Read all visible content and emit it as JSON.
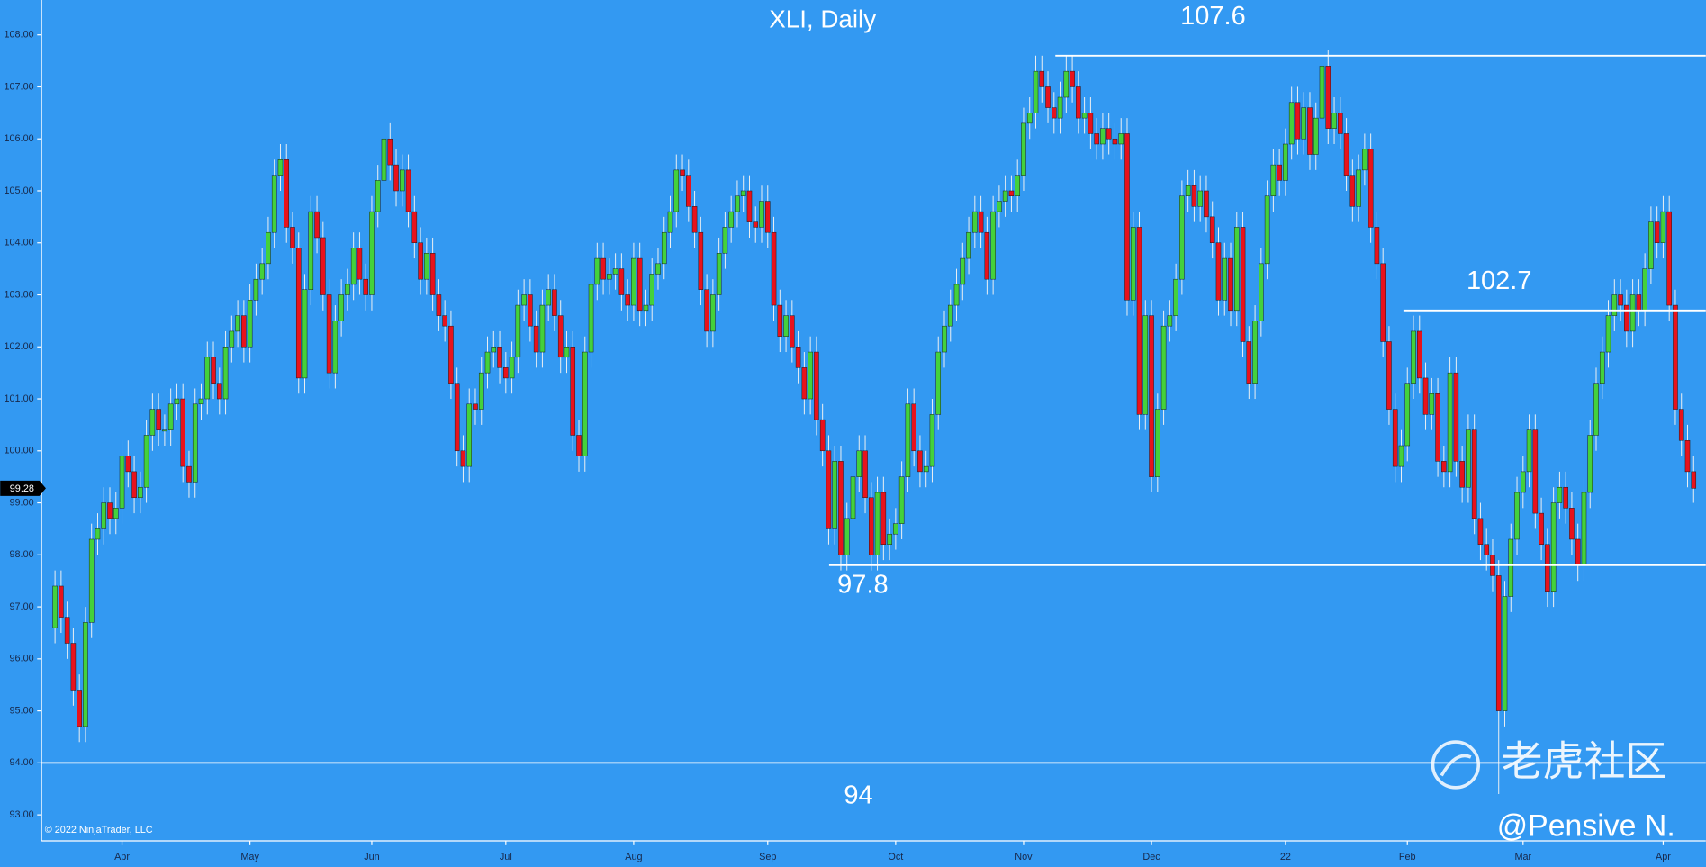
{
  "chart_data": {
    "type": "candlestick",
    "title": "XLI, Daily",
    "categories": [
      null,
      null,
      null,
      null,
      null,
      null,
      null,
      null,
      null,
      null,
      null,
      "Apr",
      null,
      null,
      null,
      null,
      null,
      null,
      null,
      null,
      null,
      null,
      null,
      null,
      null,
      null,
      null,
      null,
      null,
      null,
      null,
      null,
      "May",
      null,
      null,
      null,
      null,
      null,
      null,
      null,
      null,
      null,
      null,
      null,
      null,
      null,
      null,
      null,
      null,
      null,
      null,
      null,
      "Jun",
      null,
      null,
      null,
      null,
      null,
      null,
      null,
      null,
      null,
      null,
      null,
      null,
      null,
      null,
      null,
      null,
      null,
      null,
      null,
      null,
      null,
      "Jul",
      null,
      null,
      null,
      null,
      null,
      null,
      null,
      null,
      null,
      null,
      null,
      null,
      null,
      null,
      null,
      null,
      null,
      null,
      null,
      null,
      "Aug",
      null,
      null,
      null,
      null,
      null,
      null,
      null,
      null,
      null,
      null,
      null,
      null,
      null,
      null,
      null,
      null,
      null,
      null,
      null,
      null,
      null,
      "Sep",
      null,
      null,
      null,
      null,
      null,
      null,
      null,
      null,
      null,
      null,
      null,
      null,
      null,
      null,
      null,
      null,
      null,
      null,
      null,
      null,
      "Oct",
      null,
      null,
      null,
      null,
      null,
      null,
      null,
      null,
      null,
      null,
      null,
      null,
      null,
      null,
      null,
      null,
      null,
      null,
      null,
      null,
      "Nov",
      null,
      null,
      null,
      null,
      null,
      null,
      null,
      null,
      null,
      null,
      null,
      null,
      null,
      null,
      null,
      null,
      null,
      null,
      null,
      null,
      "Dec",
      null,
      null,
      null,
      null,
      null,
      null,
      null,
      null,
      null,
      null,
      null,
      null,
      null,
      null,
      null,
      null,
      null,
      null,
      null,
      null,
      null,
      "22",
      null,
      null,
      null,
      null,
      null,
      null,
      null,
      null,
      null,
      null,
      null,
      null,
      null,
      null,
      null,
      null,
      null,
      null,
      null,
      "Feb",
      null,
      null,
      null,
      null,
      null,
      null,
      null,
      null,
      null,
      null,
      null,
      null,
      null,
      null,
      null,
      null,
      null,
      null,
      "Mar",
      null,
      null,
      null,
      null,
      null,
      null,
      null,
      null,
      null,
      null,
      null,
      null,
      null,
      null,
      null,
      null,
      null,
      null,
      null,
      null,
      null,
      null,
      "Apr",
      null,
      null,
      null,
      null,
      null
    ],
    "open": [
      96.6,
      97.4,
      96.8,
      96.3,
      95.4,
      94.7,
      96.7,
      98.3,
      98.5,
      99.0,
      98.7,
      98.9,
      99.9,
      99.6,
      99.1,
      99.3,
      100.3,
      100.8,
      100.4,
      100.4,
      100.9,
      101.0,
      99.7,
      99.4,
      100.9,
      101.0,
      101.8,
      101.3,
      101.0,
      102.0,
      102.3,
      102.6,
      102.0,
      102.9,
      103.3,
      103.6,
      104.2,
      105.3,
      105.6,
      104.3,
      103.9,
      101.4,
      103.1,
      104.6,
      104.1,
      103.0,
      101.5,
      102.5,
      103.0,
      103.2,
      103.9,
      103.3,
      103.0,
      104.6,
      105.2,
      106.0,
      105.5,
      105.0,
      105.4,
      104.6,
      104.0,
      103.3,
      103.8,
      103.0,
      102.6,
      102.4,
      101.3,
      100.0,
      99.7,
      100.9,
      100.8,
      101.5,
      101.9,
      102.0,
      101.6,
      101.4,
      101.8,
      102.8,
      103.0,
      102.4,
      101.9,
      102.8,
      103.1,
      102.6,
      101.8,
      102.0,
      100.3,
      99.9,
      101.9,
      103.2,
      103.7,
      103.3,
      103.4,
      103.5,
      103.0,
      102.8,
      103.7,
      102.7,
      102.8,
      103.4,
      103.6,
      104.2,
      104.6,
      105.4,
      105.3,
      104.7,
      104.2,
      103.1,
      102.3,
      103.0,
      103.8,
      104.3,
      104.6,
      104.9,
      105.0,
      104.4,
      104.3,
      104.8,
      104.2,
      102.8,
      102.2,
      102.6,
      102.0,
      101.6,
      101.0,
      101.9,
      100.6,
      100.0,
      98.5,
      99.8,
      98.0,
      98.7,
      99.5,
      100.0,
      99.1,
      98.0,
      99.2,
      98.2,
      98.4,
      98.6,
      99.5,
      100.9,
      100.0,
      99.6,
      99.7,
      100.7,
      101.9,
      102.4,
      102.8,
      103.2,
      103.7,
      104.2,
      104.6,
      104.2,
      103.3,
      104.6,
      104.8,
      105.0,
      104.9,
      105.3,
      106.3,
      106.5,
      107.3,
      107.0,
      106.6,
      106.4,
      106.8,
      107.3,
      107.0,
      106.4,
      106.5,
      106.1,
      105.9,
      106.2,
      106.0,
      105.9,
      106.1,
      102.9,
      104.3,
      100.7,
      102.6,
      99.5,
      100.8,
      102.4,
      102.6,
      103.3,
      104.9,
      105.1,
      104.7,
      105.0,
      104.5,
      104.0,
      102.9,
      103.7,
      102.7,
      104.3,
      102.1,
      101.3,
      102.5,
      103.6,
      104.9,
      105.5,
      105.2,
      105.9,
      106.7,
      106.0,
      106.6,
      105.7,
      106.4,
      107.4,
      106.2,
      106.5,
      106.1,
      105.3,
      104.7,
      105.4,
      105.8,
      104.3,
      103.6,
      102.1,
      100.8,
      99.7,
      100.1,
      101.3,
      102.3,
      101.4,
      100.7,
      101.1,
      99.8,
      99.6,
      101.5,
      99.8,
      99.3,
      100.4,
      98.7,
      98.2,
      98.0,
      97.6,
      95.0,
      97.2,
      98.3,
      99.2,
      99.6,
      100.4,
      98.8,
      98.2,
      97.3,
      99.0,
      99.3,
      98.9,
      98.3,
      97.8,
      99.2,
      100.3,
      101.3,
      101.9,
      102.6,
      103.0,
      102.8,
      102.3,
      103.0,
      102.7,
      103.5,
      104.4,
      104.0,
      104.6,
      102.8,
      100.8,
      100.2,
      99.6
    ],
    "high": [
      97.7,
      97.7,
      97.1,
      96.6,
      95.7,
      97.0,
      98.6,
      98.8,
      99.3,
      99.3,
      99.2,
      100.2,
      100.2,
      99.9,
      99.6,
      100.6,
      101.1,
      101.1,
      100.7,
      101.2,
      101.3,
      101.3,
      100.0,
      101.2,
      101.3,
      102.1,
      102.1,
      101.6,
      102.3,
      102.6,
      102.9,
      102.9,
      103.2,
      103.6,
      103.9,
      104.5,
      105.6,
      105.9,
      105.9,
      104.6,
      104.2,
      103.4,
      104.9,
      104.9,
      104.4,
      103.3,
      102.8,
      103.3,
      103.5,
      104.2,
      104.2,
      103.6,
      104.9,
      105.5,
      106.3,
      106.3,
      105.8,
      105.7,
      105.7,
      104.9,
      104.3,
      104.1,
      104.1,
      103.3,
      102.9,
      102.7,
      101.6,
      100.3,
      101.2,
      101.2,
      101.8,
      102.2,
      102.3,
      102.3,
      101.9,
      102.1,
      103.1,
      103.3,
      103.3,
      102.7,
      103.1,
      103.4,
      103.4,
      102.9,
      102.3,
      102.3,
      100.6,
      102.2,
      103.5,
      104.0,
      104.0,
      103.7,
      103.8,
      103.8,
      103.3,
      104.0,
      104.0,
      103.1,
      103.7,
      103.9,
      104.5,
      104.9,
      105.7,
      105.7,
      105.6,
      105.0,
      104.5,
      103.4,
      103.3,
      104.1,
      104.6,
      104.9,
      105.2,
      105.3,
      105.3,
      104.7,
      105.1,
      105.1,
      104.5,
      103.1,
      102.9,
      102.9,
      102.3,
      101.9,
      102.2,
      102.2,
      100.9,
      100.3,
      100.1,
      100.1,
      99.0,
      99.8,
      100.3,
      100.3,
      99.4,
      99.5,
      99.5,
      98.7,
      98.9,
      99.8,
      101.2,
      101.2,
      100.3,
      100.0,
      101.0,
      102.2,
      102.7,
      103.1,
      103.5,
      104.0,
      104.5,
      104.9,
      104.9,
      104.5,
      104.9,
      105.1,
      105.3,
      105.3,
      105.6,
      106.6,
      106.8,
      107.6,
      107.6,
      107.3,
      106.9,
      107.1,
      107.6,
      107.6,
      107.3,
      106.8,
      106.8,
      106.4,
      106.5,
      106.5,
      106.3,
      106.4,
      106.4,
      104.6,
      104.6,
      102.9,
      102.9,
      101.1,
      102.7,
      102.9,
      103.6,
      105.2,
      105.4,
      105.4,
      105.3,
      105.3,
      104.8,
      104.3,
      104.0,
      104.0,
      104.6,
      104.6,
      102.4,
      102.8,
      103.9,
      105.2,
      105.8,
      105.8,
      106.2,
      107.0,
      107.0,
      106.9,
      106.9,
      106.7,
      107.7,
      107.7,
      106.8,
      106.8,
      106.4,
      105.6,
      105.7,
      106.1,
      106.1,
      104.6,
      103.9,
      102.4,
      101.1,
      100.4,
      101.6,
      102.6,
      102.6,
      101.7,
      101.4,
      101.4,
      100.1,
      101.8,
      101.8,
      100.1,
      100.7,
      100.7,
      99.0,
      98.5,
      98.3,
      97.9,
      97.5,
      98.6,
      99.5,
      99.9,
      100.7,
      100.7,
      99.1,
      98.5,
      99.3,
      99.6,
      99.6,
      99.2,
      98.6,
      99.5,
      100.6,
      101.6,
      102.2,
      102.9,
      103.3,
      103.3,
      103.1,
      103.3,
      103.3,
      103.8,
      104.7,
      104.7,
      104.9,
      104.9,
      103.1,
      101.1,
      100.5,
      99.9
    ],
    "low": [
      96.3,
      96.5,
      96.0,
      95.1,
      94.4,
      94.4,
      96.4,
      98.0,
      98.2,
      98.4,
      98.4,
      98.6,
      99.3,
      98.8,
      98.8,
      99.0,
      100.0,
      100.1,
      100.1,
      100.1,
      100.6,
      99.4,
      99.1,
      99.1,
      100.6,
      100.7,
      101.0,
      100.7,
      100.7,
      101.7,
      102.0,
      101.7,
      101.7,
      102.6,
      103.0,
      103.3,
      103.9,
      105.0,
      104.0,
      103.6,
      101.1,
      101.1,
      102.8,
      103.8,
      102.7,
      101.2,
      101.2,
      102.2,
      102.7,
      102.9,
      103.0,
      102.7,
      102.7,
      104.3,
      104.9,
      105.2,
      104.7,
      104.7,
      104.3,
      103.7,
      103.0,
      103.0,
      102.7,
      102.3,
      102.1,
      101.0,
      99.7,
      99.4,
      99.4,
      100.5,
      100.5,
      101.2,
      101.6,
      101.3,
      101.1,
      101.1,
      101.5,
      102.5,
      102.1,
      101.6,
      101.6,
      102.5,
      102.3,
      101.5,
      101.5,
      100.0,
      99.6,
      99.6,
      101.6,
      102.9,
      103.0,
      103.0,
      103.1,
      102.7,
      102.5,
      102.5,
      102.4,
      102.4,
      102.5,
      103.1,
      103.3,
      103.9,
      104.3,
      105.0,
      104.4,
      103.9,
      102.8,
      102.0,
      102.0,
      102.7,
      103.5,
      104.0,
      104.3,
      104.6,
      104.1,
      104.0,
      104.0,
      103.9,
      102.5,
      101.9,
      101.9,
      101.7,
      101.3,
      100.7,
      100.7,
      100.3,
      99.7,
      98.2,
      98.2,
      97.7,
      97.7,
      98.4,
      99.2,
      98.8,
      97.7,
      97.7,
      97.9,
      97.9,
      98.1,
      98.3,
      99.2,
      99.7,
      99.3,
      99.3,
      99.4,
      100.4,
      101.6,
      102.1,
      102.5,
      102.9,
      103.4,
      103.9,
      103.9,
      103.0,
      103.0,
      104.3,
      104.5,
      104.6,
      104.6,
      105.0,
      106.0,
      106.2,
      106.7,
      106.3,
      106.1,
      106.1,
      106.5,
      106.7,
      106.1,
      106.1,
      105.8,
      105.6,
      105.6,
      105.7,
      105.6,
      105.6,
      102.6,
      102.6,
      100.4,
      100.4,
      99.2,
      99.2,
      100.5,
      102.1,
      102.3,
      103.0,
      104.6,
      104.4,
      104.4,
      104.2,
      103.7,
      102.6,
      102.6,
      102.4,
      102.4,
      101.8,
      101.0,
      101.0,
      102.2,
      103.3,
      104.6,
      104.9,
      104.9,
      105.6,
      105.7,
      105.7,
      105.4,
      105.4,
      106.1,
      105.9,
      105.9,
      105.8,
      105.0,
      104.4,
      104.4,
      105.1,
      104.0,
      103.3,
      101.8,
      100.5,
      99.4,
      99.4,
      99.8,
      101.0,
      101.1,
      100.4,
      100.4,
      99.5,
      99.3,
      99.3,
      99.5,
      99.0,
      99.0,
      98.4,
      97.9,
      97.7,
      97.3,
      93.4,
      94.7,
      96.9,
      98.0,
      98.9,
      99.3,
      98.5,
      97.9,
      97.0,
      97.0,
      98.7,
      98.6,
      98.0,
      97.5,
      97.5,
      98.9,
      100.0,
      101.0,
      101.6,
      102.3,
      102.5,
      102.0,
      102.0,
      102.4,
      102.4,
      103.2,
      103.7,
      103.7,
      102.5,
      100.5,
      99.9,
      99.3,
      99.0
    ],
    "close": [
      97.4,
      96.8,
      96.3,
      95.4,
      94.7,
      96.7,
      98.3,
      98.5,
      99.0,
      98.7,
      98.9,
      99.9,
      99.6,
      99.1,
      99.3,
      100.3,
      100.8,
      100.4,
      100.4,
      100.9,
      101.0,
      99.7,
      99.4,
      100.9,
      101.0,
      101.8,
      101.3,
      101.0,
      102.0,
      102.3,
      102.6,
      102.0,
      102.9,
      103.3,
      103.6,
      104.2,
      105.3,
      105.6,
      104.3,
      103.9,
      101.4,
      103.1,
      104.6,
      104.1,
      103.0,
      101.5,
      102.5,
      103.0,
      103.2,
      103.9,
      103.3,
      103.0,
      104.6,
      105.2,
      106.0,
      105.5,
      105.0,
      105.4,
      104.6,
      104.0,
      103.3,
      103.8,
      103.0,
      102.6,
      102.4,
      101.3,
      100.0,
      99.7,
      100.9,
      100.8,
      101.5,
      101.9,
      102.0,
      101.6,
      101.4,
      101.8,
      102.8,
      103.0,
      102.4,
      101.9,
      102.8,
      103.1,
      102.6,
      101.8,
      102.0,
      100.3,
      99.9,
      101.9,
      103.2,
      103.7,
      103.3,
      103.4,
      103.5,
      103.0,
      102.8,
      103.7,
      102.7,
      102.8,
      103.4,
      103.6,
      104.2,
      104.6,
      105.4,
      105.3,
      104.7,
      104.2,
      103.1,
      102.3,
      103.0,
      103.8,
      104.3,
      104.6,
      104.9,
      105.0,
      104.4,
      104.3,
      104.8,
      104.2,
      102.8,
      102.2,
      102.6,
      102.0,
      101.6,
      101.0,
      101.9,
      100.6,
      100.0,
      98.5,
      99.8,
      98.0,
      98.7,
      99.5,
      100.0,
      99.1,
      98.0,
      99.2,
      98.2,
      98.4,
      98.6,
      99.5,
      100.9,
      100.0,
      99.6,
      99.7,
      100.7,
      101.9,
      102.4,
      102.8,
      103.2,
      103.7,
      104.2,
      104.6,
      104.2,
      103.3,
      104.6,
      104.8,
      105.0,
      104.9,
      105.3,
      106.3,
      106.5,
      107.3,
      107.0,
      106.6,
      106.4,
      106.8,
      107.3,
      107.0,
      106.4,
      106.5,
      106.1,
      105.9,
      106.2,
      106.0,
      105.9,
      106.1,
      102.9,
      104.3,
      100.7,
      102.6,
      99.5,
      100.8,
      102.4,
      102.6,
      103.3,
      104.9,
      105.1,
      104.7,
      105.0,
      104.5,
      104.0,
      102.9,
      103.7,
      102.7,
      104.3,
      102.1,
      101.3,
      102.5,
      103.6,
      104.9,
      105.5,
      105.2,
      105.9,
      106.7,
      106.0,
      106.6,
      105.7,
      106.4,
      107.4,
      106.2,
      106.5,
      106.1,
      105.3,
      104.7,
      105.4,
      105.8,
      104.3,
      103.6,
      102.1,
      100.8,
      99.7,
      100.1,
      101.3,
      102.3,
      101.4,
      100.7,
      101.1,
      99.8,
      99.6,
      101.5,
      99.8,
      99.3,
      100.4,
      98.7,
      98.2,
      98.0,
      97.6,
      95.0,
      97.2,
      98.3,
      99.2,
      99.6,
      100.4,
      98.8,
      98.2,
      97.3,
      99.0,
      99.3,
      98.9,
      98.3,
      97.8,
      99.2,
      100.3,
      101.3,
      101.9,
      102.6,
      103.0,
      102.8,
      102.3,
      103.0,
      102.7,
      103.5,
      104.4,
      104.0,
      104.6,
      102.8,
      100.8,
      100.2,
      99.6,
      99.28
    ],
    "up_color": "#44d13c",
    "down_color": "#e8121c",
    "ylim": [
      92.5,
      108.67
    ],
    "yticks": [
      {
        "value": 93,
        "label": "93.00"
      },
      {
        "value": 94,
        "label": "94.00"
      },
      {
        "value": 95,
        "label": "95.00"
      },
      {
        "value": 96,
        "label": "96.00"
      },
      {
        "value": 97,
        "label": "97.00"
      },
      {
        "value": 98,
        "label": "98.00"
      },
      {
        "value": 99,
        "label": "99.00"
      },
      {
        "value": 100,
        "label": "100.00"
      },
      {
        "value": 101,
        "label": "101.00"
      },
      {
        "value": 102,
        "label": "102.00"
      },
      {
        "value": 103,
        "label": "103.00"
      },
      {
        "value": 104,
        "label": "104.00"
      },
      {
        "value": 105,
        "label": "105.00"
      },
      {
        "value": 106,
        "label": "106.00"
      },
      {
        "value": 107,
        "label": "107.00"
      },
      {
        "value": 108,
        "label": "108.00"
      }
    ],
    "grid": false,
    "levels": [
      107.6,
      102.7,
      97.8,
      94
    ],
    "copyright": "© 2022 NinjaTrader, LLC"
  },
  "watermark": {
    "logo_text": "老虎社区",
    "author": "@Pensive N."
  }
}
